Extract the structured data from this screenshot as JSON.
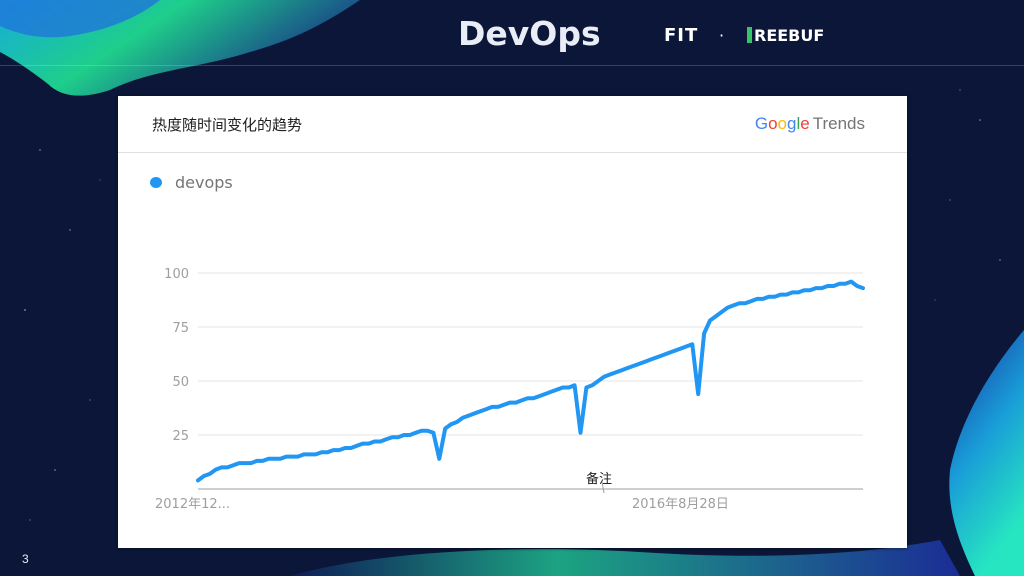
{
  "slide": {
    "title": "DevOps",
    "page_number": "3",
    "logo_left": "FIT",
    "logo_separator": "·",
    "logo_right": "REEBUF"
  },
  "colors": {
    "background": "#0b1638",
    "series": "#2196f3",
    "accent_green": "#1fe08b",
    "accent_cyan": "#1ad6e8"
  },
  "card": {
    "title": "热度随时间变化的趋势",
    "brand_letters": [
      "G",
      "o",
      "o",
      "g",
      "l",
      "e"
    ],
    "brand_suffix": "Trends",
    "annotation_label": "备注"
  },
  "chart_data": {
    "type": "line",
    "y_ticks": [
      25,
      50,
      75,
      100
    ],
    "y_tick_labels": [
      "25",
      "50",
      "75",
      "100"
    ],
    "ylim": [
      0,
      100
    ],
    "x_tick_labels": [
      "2012年12...",
      "2016年8月28日"
    ],
    "grid": true,
    "legend_position": "top-left",
    "series": [
      {
        "name": "devops",
        "values": [
          4,
          6,
          7,
          9,
          10,
          10,
          11,
          12,
          12,
          12,
          13,
          13,
          14,
          14,
          14,
          15,
          15,
          15,
          16,
          16,
          16,
          17,
          17,
          18,
          18,
          19,
          19,
          20,
          21,
          21,
          22,
          22,
          23,
          24,
          24,
          25,
          25,
          26,
          27,
          27,
          26,
          14,
          28,
          30,
          31,
          33,
          34,
          35,
          36,
          37,
          38,
          38,
          39,
          40,
          40,
          41,
          42,
          42,
          43,
          44,
          45,
          46,
          47,
          47,
          48,
          26,
          47,
          48,
          50,
          52,
          53,
          54,
          55,
          56,
          57,
          58,
          59,
          60,
          61,
          62,
          63,
          64,
          65,
          66,
          67,
          44,
          72,
          78,
          80,
          82,
          84,
          85,
          86,
          86,
          87,
          88,
          88,
          89,
          89,
          90,
          90,
          91,
          91,
          92,
          92,
          93,
          93,
          94,
          94,
          95,
          95,
          96,
          94,
          93
        ]
      }
    ]
  }
}
